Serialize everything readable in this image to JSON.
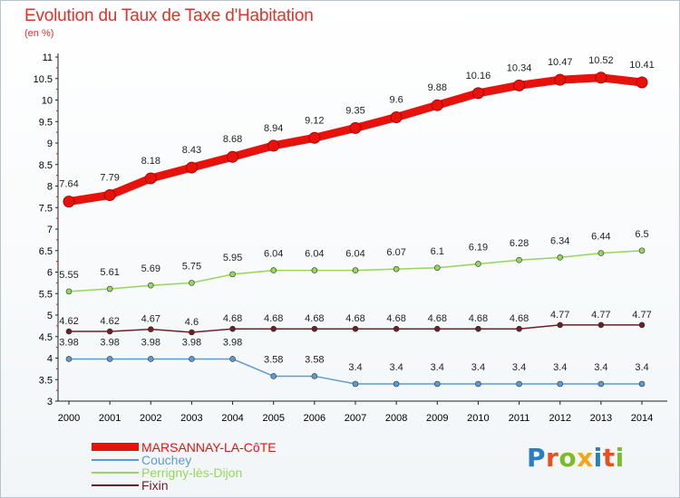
{
  "header": {
    "title": "Evolution du Taux de Taxe d'Habitation",
    "subtitle": "(en %)"
  },
  "brand": {
    "name": "Proxiti",
    "letter_colors": [
      "#2a7fc4",
      "#e8501e",
      "#7dbb2a",
      "#f2a61c",
      "#2a7fc4",
      "#e8501e",
      "#7dbb2a"
    ]
  },
  "chart_data": {
    "type": "line",
    "title": "Evolution du Taux de Taxe d'Habitation",
    "ylabel": "(en %)",
    "xlabel": "",
    "x": [
      "2000",
      "2001",
      "2002",
      "2003",
      "2004",
      "2005",
      "2006",
      "2007",
      "2008",
      "2009",
      "2010",
      "2011",
      "2012",
      "2013",
      "2014"
    ],
    "ylim": [
      3,
      11
    ],
    "yticks": [
      "3",
      "3.5",
      "4",
      "4.5",
      "5",
      "5.5",
      "6",
      "6.5",
      "7",
      "7.5",
      "8",
      "8.5",
      "9",
      "9.5",
      "10",
      "10.5",
      "11"
    ],
    "grid": false,
    "legend_position": "bottom-left",
    "series": [
      {
        "name": "MARSANNAY-LA-CôTE",
        "color": "#e8120c",
        "values": [
          7.64,
          7.79,
          8.18,
          8.43,
          8.68,
          8.94,
          9.12,
          9.35,
          9.6,
          9.88,
          10.16,
          10.34,
          10.47,
          10.52,
          10.41
        ],
        "labels": [
          "7.64",
          "7.79",
          "8.18",
          "8.43",
          "8.68",
          "8.94",
          "9.12",
          "9.35",
          "9.6",
          "9.88",
          "10.16",
          "10.34",
          "10.47",
          "10.52",
          "10.41"
        ]
      },
      {
        "name": "Couchey",
        "color": "#5b9bd1",
        "values": [
          3.98,
          3.98,
          3.98,
          3.98,
          3.98,
          3.58,
          3.58,
          3.4,
          3.4,
          3.4,
          3.4,
          3.4,
          3.4,
          3.4,
          3.4
        ],
        "labels": [
          "3.98",
          "3.98",
          "3.98",
          "3.98",
          "3.98",
          "3.58",
          "3.58",
          "3.4",
          "3.4",
          "3.4",
          "3.4",
          "3.4",
          "3.4",
          "3.4",
          "3.4"
        ]
      },
      {
        "name": "Perrigny-lès-Dijon",
        "color": "#96d65a",
        "values": [
          5.55,
          5.61,
          5.69,
          5.75,
          5.95,
          6.04,
          6.04,
          6.04,
          6.07,
          6.1,
          6.19,
          6.28,
          6.34,
          6.44,
          6.5
        ],
        "labels": [
          "5.55",
          "5.61",
          "5.69",
          "5.75",
          "5.95",
          "6.04",
          "6.04",
          "6.04",
          "6.07",
          "6.1",
          "6.19",
          "6.28",
          "6.34",
          "6.44",
          "6.5"
        ]
      },
      {
        "name": "Fixin",
        "color": "#6b1f26",
        "values": [
          4.62,
          4.62,
          4.67,
          4.6,
          4.68,
          4.68,
          4.68,
          4.68,
          4.68,
          4.68,
          4.68,
          4.68,
          4.77,
          4.77,
          4.77
        ],
        "labels": [
          "4.62",
          "4.62",
          "4.67",
          "4.6",
          "4.68",
          "4.68",
          "4.68",
          "4.68",
          "4.68",
          "4.68",
          "4.68",
          "4.68",
          "4.77",
          "4.77",
          "4.77"
        ]
      }
    ]
  }
}
